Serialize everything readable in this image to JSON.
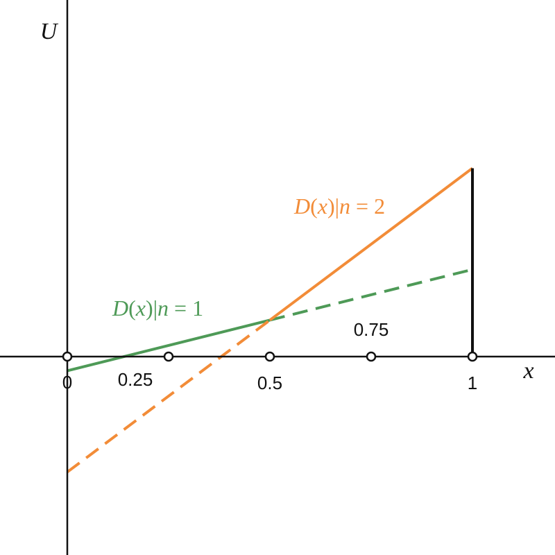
{
  "figure": {
    "axis_labels": {
      "x": "x",
      "y": "U"
    },
    "colors": {
      "axis": "#111111",
      "green": "#4e9a57",
      "orange": "#f28c38",
      "black": "#111111"
    }
  },
  "chart_data": {
    "type": "line",
    "xlabel": "x",
    "ylabel": "U",
    "x_ticks": [
      {
        "value": 0,
        "label": "0"
      },
      {
        "value": 0.25,
        "label": "0.25"
      },
      {
        "value": 0.5,
        "label": "0.5"
      },
      {
        "value": 0.75,
        "label": "0.75"
      },
      {
        "value": 1,
        "label": "1"
      }
    ],
    "xlim": [
      -0.16,
      1.2
    ],
    "ylim": [
      -0.55,
      0.95
    ],
    "grid": false,
    "series": [
      {
        "name": "D(x)|n = 1",
        "name_parts": {
          "func": "D",
          "arg": "x",
          "n": "n",
          "rest": " = 1"
        },
        "color": "#4e9a57",
        "solid": [
          [
            0,
            -0.07
          ],
          [
            0.5,
            0.18
          ]
        ],
        "dashed": [
          [
            0.5,
            0.18
          ],
          [
            1,
            0.43
          ]
        ]
      },
      {
        "name": "D(x)|n = 2",
        "name_parts": {
          "func": "D",
          "arg": "x",
          "n": "n",
          "rest": " = 2"
        },
        "color": "#f28c38",
        "solid": [
          [
            0.5,
            0.18
          ],
          [
            1,
            0.93
          ]
        ],
        "dashed": [
          [
            0,
            -0.57
          ],
          [
            0.5,
            0.18
          ]
        ]
      }
    ],
    "vertical_segments": [
      {
        "x": 1,
        "y_from": 0,
        "y_to": 0.93,
        "color": "#111111"
      }
    ]
  }
}
